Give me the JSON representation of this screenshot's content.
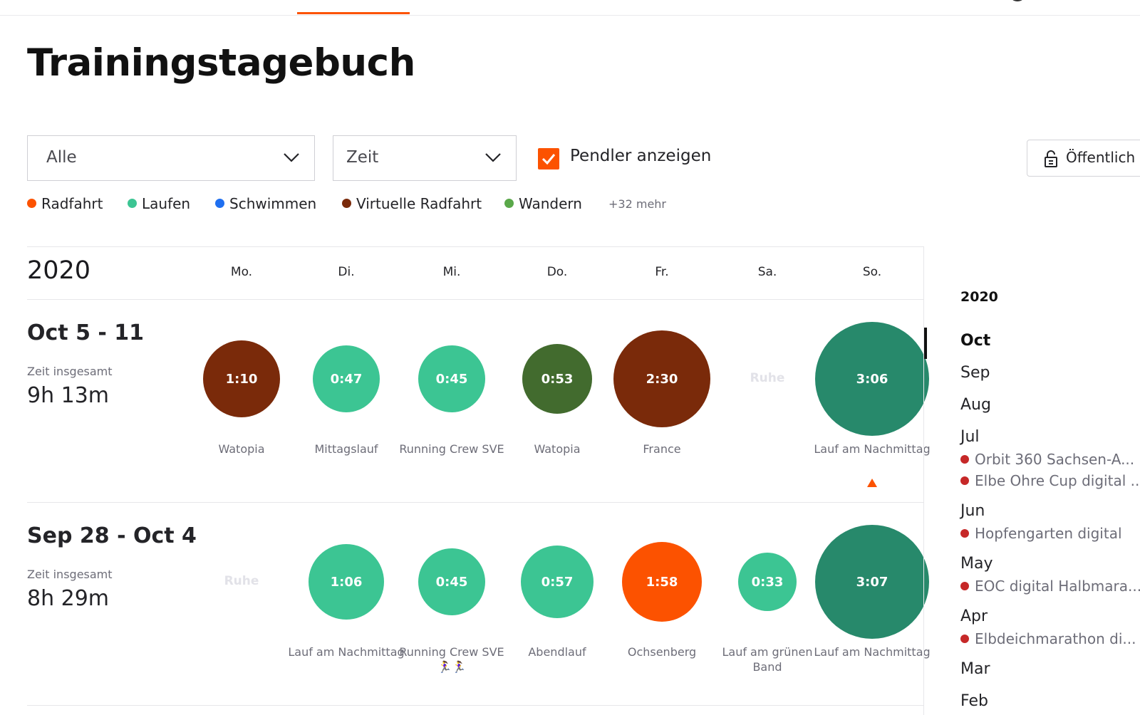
{
  "colors": {
    "accent": "#fc5200",
    "virtual_ride": "#7a2a0a",
    "run": "#3cc593",
    "run_dark": "#27896b",
    "walk_green": "#426b2e",
    "ride": "#fc5200",
    "swim": "#1f6ff0",
    "hike": "#5aa84a",
    "race_dot": "#c62828"
  },
  "page": {
    "title": "Trainingstagebuch"
  },
  "filters": {
    "type_select": "Alle",
    "metric_select": "Zeit",
    "commute_label": "Pendler anzeigen",
    "commute_checked": true,
    "visibility_label": "Öffentlich"
  },
  "legend": {
    "items": [
      {
        "label": "Radfahrt",
        "color": "#fc5200"
      },
      {
        "label": "Laufen",
        "color": "#3cc593"
      },
      {
        "label": "Schwimmen",
        "color": "#1f6ff0"
      },
      {
        "label": "Virtuelle Radfahrt",
        "color": "#7a2a0a"
      },
      {
        "label": "Wandern",
        "color": "#5aa84a"
      }
    ],
    "more": "+32 mehr"
  },
  "calendar": {
    "year": "2020",
    "days": [
      "Mo.",
      "Di.",
      "Mi.",
      "Do.",
      "Fr.",
      "Sa.",
      "So."
    ],
    "total_label": "Zeit insgesamt",
    "rest_label": "Ruhe",
    "weeks": [
      {
        "range": "Oct 5 - 11",
        "total": "9h 13m",
        "activities": [
          {
            "time": "1:10",
            "name": "Watopia",
            "type": "virtual_ride"
          },
          {
            "time": "0:47",
            "name": "Mittagslauf",
            "type": "run"
          },
          {
            "time": "0:45",
            "name": "Running Crew SVE",
            "type": "run"
          },
          {
            "time": "0:53",
            "name": "Watopia",
            "type": "walk_green"
          },
          {
            "time": "2:30",
            "name": "France",
            "type": "virtual_ride"
          },
          null,
          {
            "time": "3:06",
            "name": "Lauf am Nachmittag",
            "type": "run_dark",
            "marker": true
          }
        ]
      },
      {
        "range": "Sep 28 - Oct 4",
        "total": "8h 29m",
        "activities": [
          null,
          {
            "time": "1:06",
            "name": "Lauf am Nachmittag",
            "type": "run"
          },
          {
            "time": "0:45",
            "name": "Running Crew SVE 🏃‍♀️🏃‍♀️",
            "type": "run"
          },
          {
            "time": "0:57",
            "name": "Abendlauf",
            "type": "run"
          },
          {
            "time": "1:58",
            "name": "Ochsenberg",
            "type": "ride"
          },
          {
            "time": "0:33",
            "name": "Lauf am grünen Band",
            "type": "run"
          },
          {
            "time": "3:07",
            "name": "Lauf am Nachmittag",
            "type": "run_dark"
          }
        ]
      }
    ]
  },
  "sidebar": {
    "year": "2020",
    "active_month": "Oct",
    "months": [
      {
        "label": "Oct",
        "races": []
      },
      {
        "label": "Sep",
        "races": []
      },
      {
        "label": "Aug",
        "races": []
      },
      {
        "label": "Jul",
        "races": [
          "Orbit 360 Sachsen-A...",
          "Elbe Ohre Cup digital ..."
        ]
      },
      {
        "label": "Jun",
        "races": [
          "Hopfengarten digital"
        ]
      },
      {
        "label": "May",
        "races": [
          "EOC digital Halbmara..."
        ]
      },
      {
        "label": "Apr",
        "races": [
          "Elbdeichmarathon di..."
        ]
      },
      {
        "label": "Mar",
        "races": []
      },
      {
        "label": "Feb",
        "races": []
      }
    ]
  }
}
